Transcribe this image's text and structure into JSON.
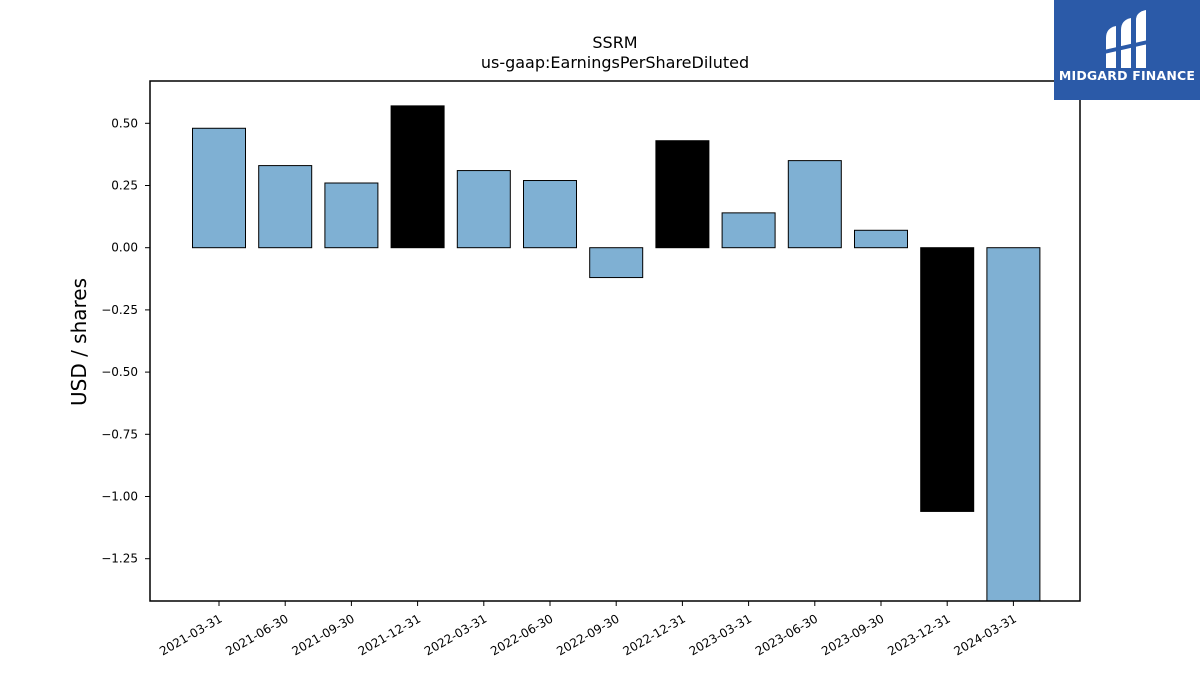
{
  "brand": {
    "name": "MIDGARD FINANCE",
    "logo_bg": "#2b5aa8",
    "logo_icon": "midgard-logo-icon"
  },
  "chart_data": {
    "type": "bar",
    "title": "SSRM",
    "subtitle": "us-gaap:EarningsPerShareDiluted",
    "xlabel": "",
    "ylabel": "USD / shares",
    "ylim": [
      -1.42,
      0.67
    ],
    "yticks": [
      0.5,
      0.25,
      0.0,
      -0.25,
      -0.5,
      -0.75,
      -1.0,
      -1.25
    ],
    "ytick_labels": [
      "0.50",
      "0.25",
      "0.00",
      "−0.25",
      "−0.50",
      "−0.75",
      "−1.00",
      "−1.25"
    ],
    "grid": false,
    "categories": [
      "2021-03-31",
      "2021-06-30",
      "2021-09-30",
      "2021-12-31",
      "2022-03-31",
      "2022-06-30",
      "2022-09-30",
      "2022-12-31",
      "2023-03-31",
      "2023-06-30",
      "2023-09-30",
      "2023-12-31",
      "2024-03-31"
    ],
    "values": [
      0.48,
      0.33,
      0.26,
      0.57,
      0.31,
      0.27,
      -0.12,
      0.43,
      0.14,
      0.35,
      0.07,
      -1.06,
      -1.42
    ],
    "bar_colors": [
      "#7fb0d3",
      "#7fb0d3",
      "#7fb0d3",
      "#000000",
      "#7fb0d3",
      "#7fb0d3",
      "#7fb0d3",
      "#000000",
      "#7fb0d3",
      "#7fb0d3",
      "#7fb0d3",
      "#000000",
      "#7fb0d3"
    ]
  }
}
